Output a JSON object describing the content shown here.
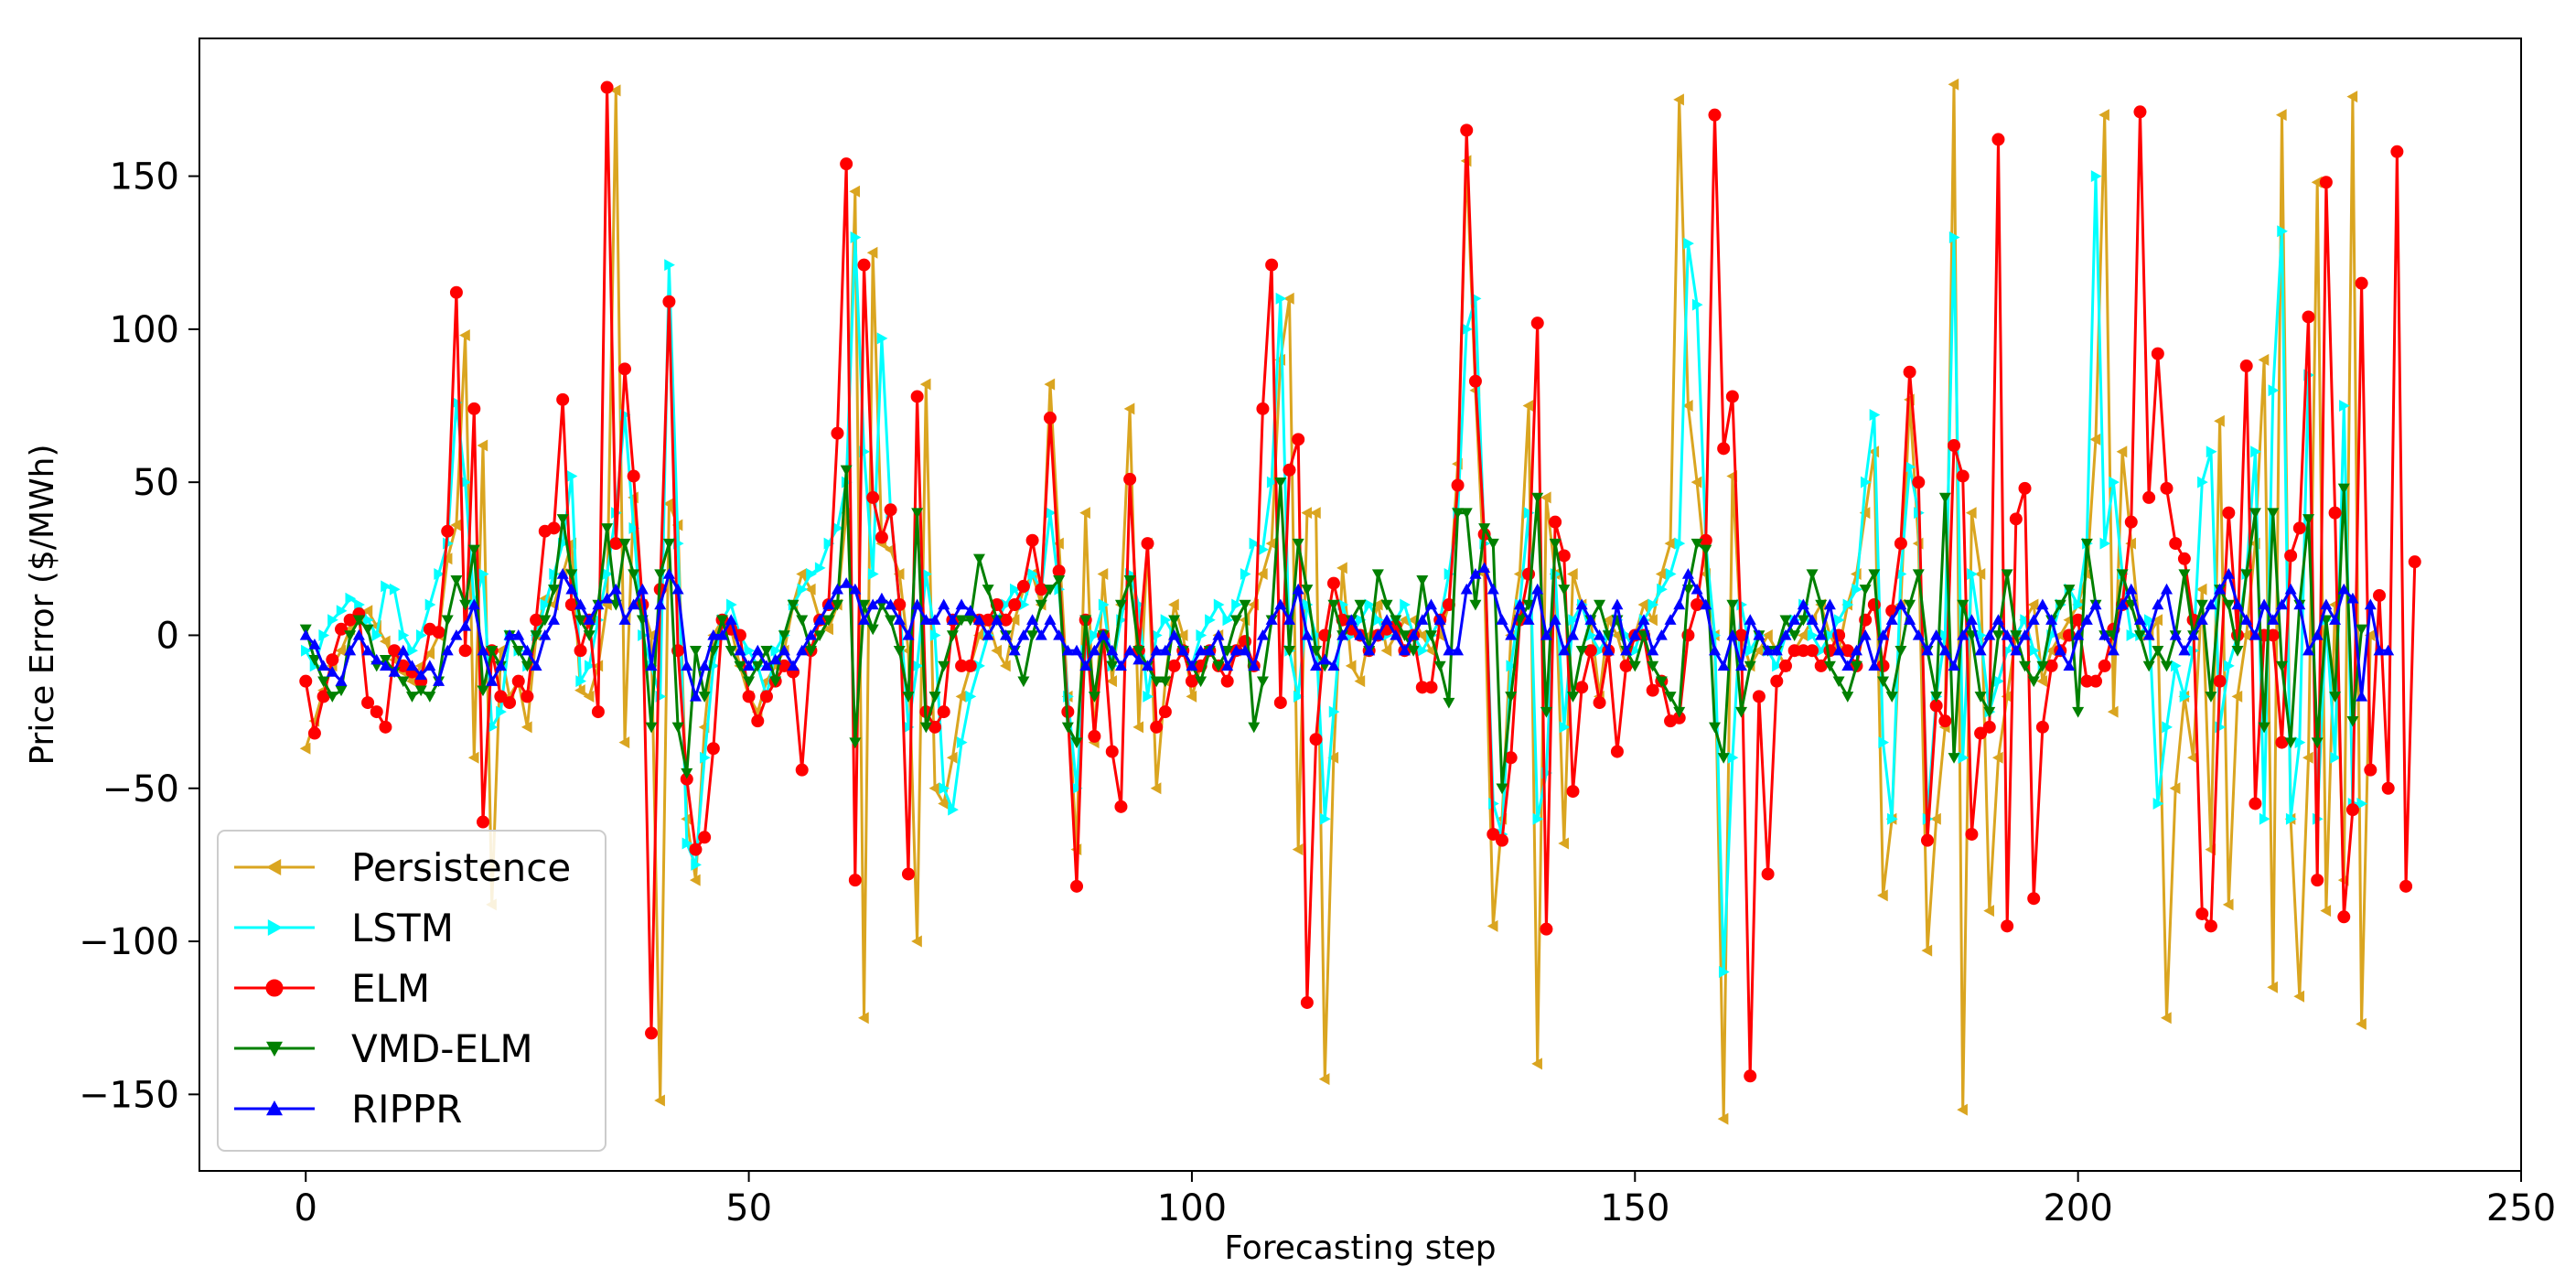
{
  "chart_data": {
    "type": "line",
    "title": "",
    "xlabel": "Forecasting step",
    "ylabel": "Price Error ($/MWh)",
    "xlim": [
      -12,
      250
    ],
    "ylim": [
      -175,
      195
    ],
    "xticks": [
      0,
      50,
      100,
      150,
      200,
      250
    ],
    "yticks": [
      -150,
      -100,
      -50,
      0,
      50,
      100,
      150
    ],
    "xtick_labels": [
      "0",
      "50",
      "100",
      "150",
      "200",
      "250"
    ],
    "ytick_labels": [
      "−150",
      "−100",
      "−50",
      "0",
      "50",
      "100",
      "150"
    ],
    "legend_position": "lower-left",
    "x_start": 0,
    "series": [
      {
        "name": "Persistence",
        "color": "#DAA520",
        "marker": "triangle-left",
        "values": [
          -37,
          -28,
          -18,
          -10,
          -5,
          2,
          5,
          8,
          3,
          -2,
          -8,
          -12,
          -15,
          -10,
          -6,
          0,
          25,
          36,
          98,
          -40,
          62,
          -88,
          -5,
          -20,
          -15,
          -30,
          0,
          12,
          10,
          20,
          30,
          -18,
          -20,
          -10,
          10,
          178,
          -35,
          45,
          10,
          0,
          -152,
          43,
          36,
          -60,
          -80,
          -30,
          0,
          5,
          2,
          -10,
          -20,
          -25,
          -15,
          -10,
          -5,
          10,
          20,
          15,
          5,
          2,
          10,
          40,
          145,
          -125,
          125,
          30,
          28,
          20,
          -5,
          -100,
          82,
          -50,
          -55,
          -40,
          -20,
          -10,
          0,
          5,
          -5,
          -10,
          5,
          15,
          20,
          10,
          82,
          30,
          -20,
          -70,
          40,
          -35,
          20,
          -15,
          10,
          74,
          -30,
          30,
          -50,
          -15,
          10,
          0,
          -20,
          -10,
          -5,
          0,
          -10,
          -5,
          5,
          10,
          20,
          30,
          90,
          110,
          -70,
          40,
          40,
          -145,
          -40,
          22,
          -10,
          -15,
          0,
          10,
          -5,
          0,
          5,
          5,
          0,
          -5,
          0,
          10,
          56,
          155,
          80,
          20,
          -95,
          -60,
          0,
          20,
          75,
          -140,
          45,
          20,
          -68,
          20,
          10,
          5,
          -20,
          5,
          0,
          -10,
          0,
          10,
          5,
          20,
          30,
          175,
          75,
          50,
          20,
          0,
          -158,
          52,
          0,
          -10,
          -5,
          0,
          -5,
          -10,
          -5,
          0,
          5,
          10,
          0,
          -5,
          10,
          20,
          40,
          60,
          -85,
          -60,
          10,
          77,
          30,
          -103,
          -60,
          -30,
          180,
          -155,
          40,
          20,
          -90,
          -40,
          -20,
          0,
          5,
          10,
          -15,
          -5,
          0,
          5,
          10,
          20,
          64,
          170,
          -25,
          60,
          30,
          0,
          0,
          5,
          -125,
          -50,
          -20,
          -40,
          15,
          -70,
          70,
          -88,
          -20,
          0,
          30,
          90,
          -115,
          170,
          -60,
          -118,
          -40,
          148,
          -90,
          10,
          -80,
          176,
          -127,
          0
        ]
      },
      {
        "name": "LSTM",
        "color": "#00FFFF",
        "marker": "triangle-right",
        "values": [
          -5,
          -10,
          0,
          5,
          8,
          12,
          10,
          5,
          0,
          16,
          15,
          0,
          -5,
          0,
          10,
          20,
          30,
          76,
          50,
          10,
          20,
          -30,
          -25,
          0,
          -5,
          -10,
          0,
          10,
          20,
          30,
          52,
          -15,
          -10,
          5,
          20,
          40,
          72,
          35,
          0,
          -10,
          -20,
          121,
          30,
          -68,
          -75,
          -40,
          -10,
          5,
          10,
          0,
          -5,
          -10,
          -20,
          -5,
          0,
          10,
          15,
          20,
          22,
          30,
          35,
          50,
          130,
          60,
          20,
          97,
          40,
          10,
          -30,
          -10,
          20,
          0,
          -50,
          -57,
          -35,
          -20,
          -10,
          0,
          5,
          10,
          15,
          10,
          20,
          15,
          40,
          15,
          -20,
          -50,
          -5,
          0,
          10,
          -10,
          5,
          20,
          10,
          -20,
          0,
          5,
          0,
          -5,
          -10,
          0,
          5,
          10,
          5,
          10,
          20,
          30,
          28,
          50,
          110,
          -5,
          -20,
          10,
          0,
          -60,
          -25,
          10,
          0,
          5,
          10,
          5,
          0,
          5,
          10,
          0,
          -5,
          0,
          5,
          20,
          40,
          100,
          110,
          30,
          -55,
          -65,
          -10,
          10,
          40,
          -60,
          -45,
          20,
          -30,
          5,
          10,
          0,
          -5,
          0,
          5,
          0,
          -5,
          5,
          10,
          15,
          20,
          30,
          128,
          108,
          30,
          0,
          -110,
          -40,
          10,
          -5,
          0,
          -5,
          -10,
          0,
          5,
          10,
          0,
          -5,
          0,
          5,
          10,
          15,
          50,
          72,
          -35,
          -60,
          20,
          55,
          40,
          -60,
          -20,
          0,
          130,
          -40,
          20,
          0,
          -25,
          -15,
          -5,
          0,
          5,
          -5,
          -10,
          0,
          10,
          15,
          10,
          30,
          150,
          30,
          50,
          20,
          0,
          0,
          5,
          -55,
          -30,
          -10,
          -20,
          -5,
          50,
          60,
          -30,
          -10,
          0,
          20,
          60,
          -60,
          80,
          132,
          -60,
          -35,
          85,
          -60,
          5,
          -40,
          75,
          -55,
          -55
        ]
      },
      {
        "name": "ELM",
        "color": "#FF0000",
        "marker": "circle",
        "values": [
          -15,
          -32,
          -20,
          -8,
          2,
          5,
          7,
          -22,
          -25,
          -30,
          -5,
          -10,
          -12,
          -15,
          2,
          1,
          34,
          112,
          -5,
          74,
          -61,
          -5,
          -20,
          -22,
          -15,
          -20,
          5,
          34,
          35,
          77,
          10,
          -5,
          5,
          -25,
          179,
          30,
          87,
          52,
          10,
          -130,
          15,
          109,
          -5,
          -47,
          -70,
          -66,
          -37,
          5,
          2,
          0,
          -20,
          -28,
          -20,
          -15,
          -10,
          -12,
          -44,
          -5,
          5,
          10,
          66,
          154,
          -80,
          121,
          45,
          32,
          41,
          10,
          -78,
          78,
          -25,
          -30,
          -25,
          5,
          -10,
          -10,
          5,
          5,
          10,
          5,
          10,
          16,
          31,
          15,
          71,
          21,
          -25,
          -82,
          5,
          -33,
          0,
          -38,
          -56,
          51,
          -5,
          30,
          -30,
          -25,
          -10,
          -5,
          -15,
          -10,
          -5,
          -10,
          -15,
          -5,
          -2,
          -10,
          74,
          121,
          -22,
          54,
          64,
          -120,
          -34,
          0,
          17,
          5,
          2,
          0,
          -5,
          0,
          2,
          3,
          -5,
          0,
          -17,
          -17,
          5,
          10,
          49,
          165,
          83,
          33,
          -65,
          -67,
          -40,
          5,
          20,
          102,
          -96,
          37,
          26,
          -51,
          -17,
          -5,
          -22,
          -5,
          -38,
          -10,
          0,
          0,
          -18,
          -15,
          -28,
          -27,
          0,
          10,
          31,
          170,
          61,
          78,
          0,
          -144,
          -20,
          -78,
          -15,
          -10,
          -5,
          -5,
          -5,
          -10,
          -5,
          0,
          -5,
          -10,
          5,
          10,
          -10,
          8,
          30,
          86,
          50,
          -67,
          -23,
          -28,
          62,
          52,
          -65,
          -32,
          -30,
          162,
          -95,
          38,
          48,
          -86,
          -30,
          -10,
          -5,
          0,
          5,
          -15,
          -15,
          -10,
          2,
          10,
          37,
          171,
          45,
          92,
          48,
          30,
          25,
          5,
          -91,
          -95,
          -15,
          40,
          0,
          88,
          -55,
          0,
          0,
          -35,
          26,
          35,
          104,
          -80,
          148,
          40,
          -92,
          -57,
          115,
          -44,
          13,
          -50,
          158,
          -82,
          24
        ]
      },
      {
        "name": "VMD-ELM",
        "color": "#008000",
        "marker": "triangle-down",
        "values": [
          2,
          -8,
          -15,
          -20,
          -18,
          0,
          5,
          2,
          -10,
          -8,
          -12,
          -15,
          -20,
          -18,
          -20,
          -15,
          5,
          18,
          10,
          28,
          -18,
          -5,
          -10,
          0,
          -5,
          -10,
          0,
          5,
          15,
          38,
          20,
          5,
          0,
          10,
          35,
          10,
          30,
          20,
          5,
          -30,
          20,
          30,
          -30,
          -45,
          -5,
          -20,
          -5,
          5,
          -5,
          -10,
          -15,
          -10,
          -5,
          -15,
          0,
          10,
          5,
          -5,
          0,
          5,
          10,
          54,
          -35,
          10,
          2,
          10,
          5,
          -5,
          -20,
          40,
          -30,
          -20,
          -10,
          0,
          5,
          5,
          25,
          15,
          5,
          0,
          -5,
          -15,
          0,
          10,
          15,
          18,
          -30,
          -35,
          5,
          -20,
          0,
          -10,
          10,
          18,
          -5,
          -10,
          -15,
          -15,
          5,
          -5,
          -10,
          -15,
          -5,
          -10,
          -5,
          5,
          10,
          -30,
          -15,
          5,
          50,
          -5,
          30,
          15,
          -5,
          -10,
          10,
          0,
          5,
          10,
          -5,
          20,
          10,
          5,
          0,
          -5,
          18,
          0,
          -10,
          -22,
          40,
          40,
          10,
          35,
          30,
          -50,
          -20,
          5,
          10,
          45,
          -25,
          30,
          15,
          -20,
          -5,
          5,
          10,
          0,
          5,
          -5,
          -10,
          0,
          -10,
          -15,
          -20,
          -25,
          15,
          30,
          28,
          -30,
          -40,
          10,
          -25,
          -10,
          0,
          -5,
          -5,
          5,
          0,
          5,
          20,
          10,
          -10,
          -15,
          -20,
          -10,
          15,
          20,
          -15,
          -20,
          -5,
          10,
          20,
          -5,
          -20,
          45,
          -40,
          10,
          0,
          -20,
          -25,
          0,
          20,
          0,
          -10,
          -15,
          -10,
          5,
          10,
          15,
          -25,
          30,
          10,
          0,
          0,
          20,
          10,
          0,
          -10,
          -5,
          -10,
          0,
          20,
          0,
          10,
          -20,
          15,
          10,
          -5,
          20,
          40,
          -30,
          40,
          -10,
          -35,
          10,
          38,
          -35,
          5,
          -20,
          48,
          -28,
          2
        ]
      },
      {
        "name": "RIPPR",
        "color": "#0000FF",
        "marker": "triangle-up",
        "values": [
          0,
          -3,
          -10,
          -12,
          -15,
          -5,
          0,
          -5,
          -8,
          -10,
          -12,
          -5,
          -10,
          -13,
          -10,
          -15,
          -5,
          0,
          3,
          10,
          -5,
          -15,
          -10,
          0,
          0,
          -5,
          -10,
          0,
          5,
          20,
          15,
          10,
          5,
          10,
          12,
          15,
          5,
          10,
          15,
          -10,
          10,
          20,
          15,
          -10,
          -20,
          -10,
          0,
          0,
          5,
          -5,
          -10,
          -5,
          -10,
          -8,
          -5,
          -10,
          -5,
          0,
          5,
          10,
          15,
          17,
          15,
          5,
          10,
          12,
          10,
          5,
          0,
          10,
          5,
          5,
          10,
          5,
          10,
          8,
          5,
          0,
          5,
          0,
          -5,
          0,
          5,
          0,
          5,
          0,
          -5,
          -5,
          -10,
          -5,
          0,
          -5,
          -10,
          -5,
          -8,
          -10,
          -5,
          -5,
          0,
          -5,
          -10,
          -5,
          -5,
          0,
          -10,
          -5,
          -5,
          -10,
          0,
          5,
          10,
          5,
          15,
          0,
          -10,
          -8,
          -10,
          0,
          5,
          0,
          -5,
          0,
          5,
          0,
          -5,
          0,
          5,
          10,
          5,
          -5,
          -5,
          15,
          20,
          22,
          15,
          5,
          0,
          10,
          5,
          15,
          0,
          5,
          -5,
          0,
          10,
          5,
          0,
          -5,
          10,
          -5,
          0,
          5,
          -5,
          0,
          5,
          10,
          20,
          15,
          10,
          -5,
          -10,
          0,
          -10,
          5,
          0,
          -5,
          -5,
          0,
          5,
          10,
          5,
          0,
          10,
          -5,
          -10,
          -5,
          0,
          -10,
          0,
          5,
          10,
          5,
          0,
          -5,
          0,
          -5,
          -10,
          0,
          5,
          -5,
          0,
          5,
          0,
          -5,
          0,
          5,
          10,
          5,
          -5,
          -10,
          0,
          5,
          10,
          0,
          -5,
          10,
          15,
          5,
          0,
          10,
          15,
          0,
          -5,
          0,
          5,
          10,
          15,
          20,
          10,
          5,
          0,
          10,
          5,
          10,
          15,
          10,
          -5,
          0,
          10,
          5,
          15,
          12,
          -20,
          10,
          -5,
          -5
        ]
      }
    ]
  }
}
